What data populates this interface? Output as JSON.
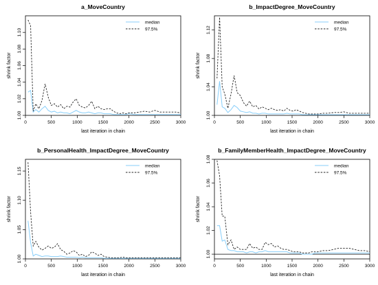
{
  "figure": {
    "xlabel": "last iteration in chain",
    "ylabel": "shrink factor"
  },
  "colors": {
    "median": "#87cefa",
    "p975": "#222222",
    "axis": "#000000",
    "refline": "#000000"
  },
  "chart_data": [
    {
      "type": "line",
      "title": "a_MoveCountry",
      "xlabel": "last iteration in chain",
      "ylabel": "shrink factor",
      "xlim": [
        0,
        3000
      ],
      "ylim": [
        1.0,
        1.12
      ],
      "xticks": [
        0,
        500,
        1000,
        1500,
        2000,
        2500,
        3000
      ],
      "yticks": [
        1.0,
        1.02,
        1.04,
        1.06,
        1.08,
        1.1
      ],
      "ytick_labels": [
        "1.00",
        "1.02",
        "1.04",
        "1.06",
        "1.08",
        "1.10"
      ],
      "legend": {
        "position": "top-right",
        "entries": [
          "median",
          "97.5%"
        ]
      },
      "series": [
        {
          "name": "median",
          "style": "solid",
          "x": [
            50,
            100,
            150,
            200,
            260,
            320,
            380,
            440,
            500,
            560,
            620,
            680,
            740,
            800,
            860,
            920,
            980,
            1040,
            1100,
            1160,
            1220,
            1280,
            1340,
            1400,
            1460,
            1520,
            1580,
            1640,
            1700,
            1760,
            1820,
            1880,
            1940,
            2000,
            2100,
            2200,
            2300,
            2400,
            2500,
            2600,
            2700,
            2800,
            2900,
            3000
          ],
          "y": [
            1.028,
            1.03,
            1.004,
            1.007,
            1.004,
            1.008,
            1.011,
            1.006,
            1.004,
            1.005,
            1.003,
            1.004,
            1.003,
            1.003,
            1.002,
            1.004,
            1.006,
            1.004,
            1.003,
            1.003,
            1.004,
            1.003,
            1.002,
            1.003,
            1.003,
            1.002,
            1.002,
            1.002,
            1.001,
            1.001,
            1.001,
            1.001,
            1.001,
            1.002,
            1.001,
            1.001,
            1.001,
            1.001,
            1.001,
            1.001,
            1.001,
            1.001,
            1.001,
            1.001
          ]
        },
        {
          "name": "97.5%",
          "style": "dashed",
          "x": [
            50,
            100,
            150,
            200,
            260,
            320,
            380,
            440,
            500,
            560,
            620,
            680,
            740,
            800,
            860,
            920,
            980,
            1040,
            1100,
            1160,
            1220,
            1280,
            1340,
            1400,
            1460,
            1520,
            1580,
            1640,
            1700,
            1760,
            1820,
            1880,
            1940,
            2000,
            2100,
            2200,
            2300,
            2400,
            2500,
            2600,
            2700,
            2800,
            2900,
            3000
          ],
          "y": [
            1.115,
            1.108,
            1.005,
            1.014,
            1.008,
            1.018,
            1.038,
            1.022,
            1.012,
            1.014,
            1.01,
            1.013,
            1.008,
            1.011,
            1.01,
            1.016,
            1.02,
            1.012,
            1.01,
            1.009,
            1.012,
            1.017,
            1.008,
            1.011,
            1.008,
            1.007,
            1.008,
            1.008,
            1.005,
            1.003,
            1.002,
            1.003,
            1.002,
            1.003,
            1.003,
            1.004,
            1.005,
            1.004,
            1.006,
            1.004,
            1.004,
            1.004,
            1.004,
            1.003
          ]
        }
      ]
    },
    {
      "type": "line",
      "title": "b_ImpactDegree_MoveCountry",
      "xlabel": "last iteration in chain",
      "ylabel": "shrink factor",
      "xlim": [
        0,
        3000
      ],
      "ylim": [
        1.0,
        1.14
      ],
      "xticks": [
        0,
        500,
        1000,
        1500,
        2000,
        2500,
        3000
      ],
      "yticks": [
        1.0,
        1.04,
        1.08,
        1.12
      ],
      "ytick_labels": [
        "1.00",
        "1.04",
        "1.08",
        "1.12"
      ],
      "legend": {
        "position": "top-right",
        "entries": [
          "median",
          "97.5%"
        ]
      },
      "series": [
        {
          "name": "median",
          "style": "solid",
          "x": [
            50,
            100,
            150,
            200,
            260,
            320,
            380,
            440,
            500,
            560,
            620,
            680,
            740,
            800,
            860,
            920,
            980,
            1040,
            1100,
            1160,
            1220,
            1280,
            1340,
            1400,
            1460,
            1520,
            1580,
            1640,
            1700,
            1760,
            1820,
            1880,
            1940,
            2000,
            2100,
            2200,
            2300,
            2400,
            2500,
            2600,
            2700,
            2800,
            2900,
            3000
          ],
          "y": [
            1.015,
            1.048,
            1.012,
            1.01,
            1.004,
            1.008,
            1.014,
            1.011,
            1.006,
            1.005,
            1.004,
            1.005,
            1.003,
            1.003,
            1.002,
            1.003,
            1.003,
            1.002,
            1.002,
            1.002,
            1.002,
            1.002,
            1.002,
            1.003,
            1.002,
            1.002,
            1.002,
            1.002,
            1.001,
            1.001,
            1.001,
            1.001,
            1.001,
            1.001,
            1.001,
            1.001,
            1.001,
            1.001,
            1.001,
            1.001,
            1.001,
            1.001,
            1.001,
            1.001
          ]
        },
        {
          "name": "97.5%",
          "style": "dashed",
          "x": [
            50,
            100,
            150,
            200,
            260,
            320,
            380,
            440,
            500,
            560,
            620,
            680,
            740,
            800,
            860,
            920,
            980,
            1040,
            1100,
            1160,
            1220,
            1280,
            1340,
            1400,
            1460,
            1520,
            1580,
            1640,
            1700,
            1760,
            1820,
            1880,
            1940,
            2000,
            2100,
            2200,
            2300,
            2400,
            2500,
            2600,
            2700,
            2800,
            2900,
            3000
          ],
          "y": [
            1.052,
            1.138,
            1.04,
            1.03,
            1.01,
            1.03,
            1.056,
            1.032,
            1.028,
            1.018,
            1.013,
            1.02,
            1.012,
            1.014,
            1.009,
            1.012,
            1.01,
            1.008,
            1.01,
            1.008,
            1.007,
            1.008,
            1.006,
            1.01,
            1.007,
            1.006,
            1.008,
            1.006,
            1.004,
            1.003,
            1.002,
            1.002,
            1.002,
            1.002,
            1.003,
            1.003,
            1.004,
            1.004,
            1.005,
            1.003,
            1.003,
            1.003,
            1.003,
            1.003
          ]
        }
      ]
    },
    {
      "type": "line",
      "title": "b_PersonalHealth_ImpactDegree_MoveCountry",
      "xlabel": "last iteration in chain",
      "ylabel": "shrink factor",
      "xlim": [
        0,
        3000
      ],
      "ylim": [
        1.0,
        1.17
      ],
      "xticks": [
        0,
        500,
        1000,
        1500,
        2000,
        2500,
        3000
      ],
      "yticks": [
        1.0,
        1.05,
        1.1,
        1.15
      ],
      "ytick_labels": [
        "1.00",
        "1.05",
        "1.10",
        "1.15"
      ],
      "legend": {
        "position": "top-right",
        "entries": [
          "median",
          "97.5%"
        ]
      },
      "series": [
        {
          "name": "median",
          "style": "solid",
          "x": [
            50,
            100,
            150,
            200,
            260,
            320,
            380,
            440,
            500,
            560,
            620,
            680,
            740,
            800,
            860,
            920,
            980,
            1040,
            1100,
            1160,
            1220,
            1280,
            1340,
            1400,
            1460,
            1520,
            1580,
            1640,
            1700,
            1760,
            1820,
            1880,
            1940,
            2000,
            2100,
            2200,
            2300,
            2400,
            2500,
            2600,
            2700,
            2800,
            2900,
            3000
          ],
          "y": [
            1.065,
            1.028,
            1.005,
            1.008,
            1.006,
            1.004,
            1.005,
            1.005,
            1.004,
            1.004,
            1.004,
            1.005,
            1.004,
            1.003,
            1.003,
            1.003,
            1.003,
            1.002,
            1.003,
            1.002,
            1.002,
            1.002,
            1.002,
            1.002,
            1.002,
            1.001,
            1.001,
            1.001,
            1.001,
            1.001,
            1.001,
            1.001,
            1.001,
            1.001,
            1.001,
            1.001,
            1.001,
            1.001,
            1.001,
            1.001,
            1.001,
            1.001,
            1.001,
            1.001
          ]
        },
        {
          "name": "97.5%",
          "style": "dashed",
          "x": [
            50,
            100,
            150,
            200,
            260,
            320,
            380,
            440,
            500,
            560,
            620,
            680,
            740,
            800,
            860,
            920,
            980,
            1040,
            1100,
            1160,
            1220,
            1280,
            1340,
            1400,
            1460,
            1520,
            1580,
            1640,
            1700,
            1760,
            1820,
            1880,
            1940,
            2000,
            2100,
            2200,
            2300,
            2400,
            2500,
            2600,
            2700,
            2800,
            2900,
            3000
          ],
          "y": [
            1.165,
            1.08,
            1.022,
            1.03,
            1.02,
            1.015,
            1.018,
            1.022,
            1.018,
            1.02,
            1.026,
            1.016,
            1.013,
            1.008,
            1.01,
            1.014,
            1.012,
            1.006,
            1.008,
            1.004,
            1.006,
            1.012,
            1.01,
            1.006,
            1.008,
            1.004,
            1.003,
            1.002,
            1.002,
            1.002,
            1.002,
            1.003,
            1.002,
            1.002,
            1.002,
            1.002,
            1.002,
            1.002,
            1.002,
            1.002,
            1.002,
            1.002,
            1.002,
            1.002
          ]
        }
      ]
    },
    {
      "type": "line",
      "title": "b_FamilyMemberHealth_ImpactDegree_MoveCountry",
      "xlabel": "last iteration in chain",
      "ylabel": "shrink factor",
      "xlim": [
        0,
        3000
      ],
      "ylim": [
        0.996,
        1.08
      ],
      "xticks": [
        0,
        500,
        1000,
        1500,
        2000,
        2500,
        3000
      ],
      "yticks": [
        1.0,
        1.02,
        1.04,
        1.06,
        1.08
      ],
      "ytick_labels": [
        "1.00",
        "1.02",
        "1.04",
        "1.06",
        "1.08"
      ],
      "refline": 1.0,
      "legend": {
        "position": "top-right",
        "entries": [
          "median",
          "97.5%"
        ]
      },
      "series": [
        {
          "name": "median",
          "style": "solid",
          "x": [
            50,
            100,
            150,
            200,
            260,
            320,
            380,
            440,
            500,
            560,
            620,
            680,
            740,
            800,
            860,
            920,
            980,
            1040,
            1100,
            1160,
            1220,
            1280,
            1340,
            1400,
            1460,
            1520,
            1580,
            1640,
            1700,
            1760,
            1820,
            1880,
            1940,
            2000,
            2100,
            2200,
            2300,
            2400,
            2500,
            2600,
            2700,
            2800,
            2900,
            3000
          ],
          "y": [
            1.024,
            1.024,
            1.011,
            1.012,
            1.004,
            1.003,
            1.003,
            1.002,
            1.002,
            1.002,
            1.001,
            1.002,
            1.002,
            1.001,
            1.002,
            1.002,
            1.003,
            1.002,
            1.002,
            1.002,
            1.002,
            1.002,
            1.002,
            1.002,
            1.001,
            1.001,
            1.001,
            1.001,
            1.0,
            1.0,
            1.0,
            1.0,
            1.001,
            1.001,
            1.001,
            1.001,
            1.001,
            1.001,
            1.001,
            1.001,
            1.001,
            1.001,
            1.001,
            1.001
          ]
        },
        {
          "name": "97.5%",
          "style": "dashed",
          "x": [
            50,
            100,
            150,
            200,
            260,
            320,
            380,
            440,
            500,
            560,
            620,
            680,
            740,
            800,
            860,
            920,
            980,
            1040,
            1100,
            1160,
            1220,
            1280,
            1340,
            1400,
            1460,
            1520,
            1580,
            1640,
            1700,
            1760,
            1820,
            1880,
            1940,
            2000,
            2100,
            2200,
            2300,
            2400,
            2500,
            2600,
            2700,
            2800,
            2900,
            3000
          ],
          "y": [
            1.079,
            1.066,
            1.032,
            1.032,
            1.008,
            1.012,
            1.004,
            1.006,
            1.004,
            1.004,
            1.004,
            1.009,
            1.005,
            1.006,
            1.004,
            1.004,
            1.01,
            1.008,
            1.009,
            1.006,
            1.007,
            1.005,
            1.004,
            1.004,
            1.003,
            1.002,
            1.002,
            1.002,
            1.001,
            1.001,
            1.001,
            1.002,
            1.002,
            1.002,
            1.003,
            1.003,
            1.004,
            1.005,
            1.005,
            1.005,
            1.004,
            1.003,
            1.003,
            1.002
          ]
        }
      ]
    }
  ]
}
